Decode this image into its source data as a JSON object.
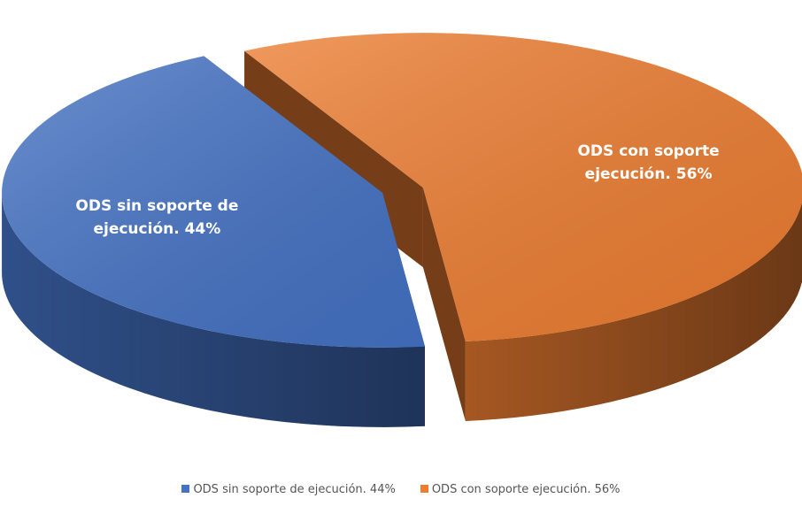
{
  "chart_data": {
    "type": "pie",
    "categories": [
      "ODS sin soporte de ejecución. 44%",
      "ODS con soporte ejecución. 56%"
    ],
    "values": [
      44,
      56
    ],
    "colors": [
      "#4472c4",
      "#ed7d31"
    ],
    "legend": "bottom"
  }
}
